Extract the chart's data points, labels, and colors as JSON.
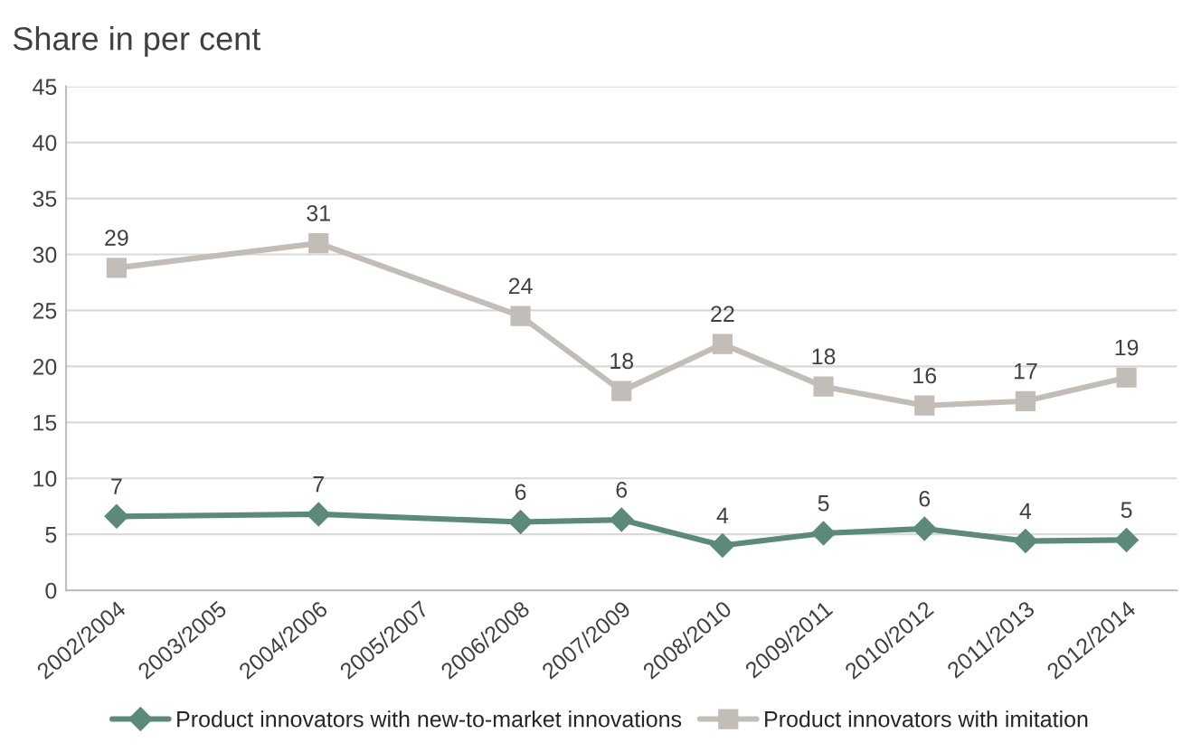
{
  "chart_data": {
    "type": "line",
    "title": "Share in per cent",
    "categories": [
      "2002/2004",
      "2003/2005",
      "2004/2006",
      "2005/2007",
      "2006/2008",
      "2007/2009",
      "2008/2010",
      "2009/2011",
      "2010/2012",
      "2011/2013",
      "2012/2014"
    ],
    "series": [
      {
        "name": "Product innovators with new-to-market innovations",
        "color": "#5b8a78",
        "marker": "diamond",
        "values": [
          6.6,
          null,
          6.8,
          null,
          6.1,
          6.3,
          4.0,
          5.1,
          5.5,
          4.4,
          4.5
        ],
        "value_labels": [
          "7",
          null,
          "7",
          null,
          "6",
          "6",
          "4",
          "5",
          "6",
          "4",
          "5"
        ]
      },
      {
        "name": "Product innovators with imitation",
        "color": "#c3bdb8",
        "marker": "square",
        "values": [
          28.8,
          null,
          31.0,
          null,
          24.5,
          17.8,
          22.0,
          18.2,
          16.5,
          16.9,
          19.0
        ],
        "value_labels": [
          "29",
          null,
          "31",
          null,
          "24",
          "18",
          "22",
          "18",
          "16",
          "17",
          "19"
        ]
      }
    ],
    "ylim": [
      0,
      45
    ],
    "yticks": [
      0,
      5,
      10,
      15,
      20,
      25,
      30,
      35,
      40,
      45
    ],
    "grid": "y",
    "legend": "bottom",
    "line_style": "solid"
  }
}
